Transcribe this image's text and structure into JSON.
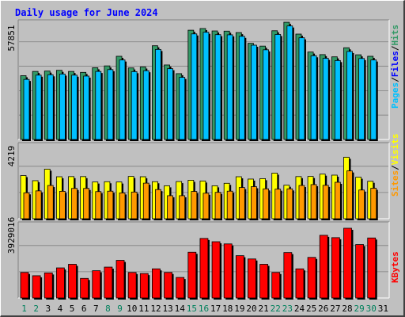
{
  "chart_data": {
    "type": "bar",
    "title": "Daily usage for June 2024",
    "categories": [
      "1",
      "2",
      "3",
      "4",
      "5",
      "6",
      "7",
      "8",
      "9",
      "10",
      "11",
      "12",
      "13",
      "14",
      "15",
      "16",
      "17",
      "18",
      "19",
      "20",
      "21",
      "22",
      "23",
      "24",
      "25",
      "26",
      "27",
      "28",
      "29",
      "30",
      "31"
    ],
    "weekend_days": [
      "1",
      "2",
      "8",
      "9",
      "15",
      "16",
      "22",
      "23",
      "29",
      "30"
    ],
    "colors": {
      "hits": "#339966",
      "files": "#00c0ff",
      "pages": "#00c0ff",
      "visits": "#ffff00",
      "sites": "#ff9900",
      "kbytes": "#ff0000",
      "plot_bg": "#c0c0c0",
      "grid": "#808080",
      "title": "#0000ff",
      "weekday_tick": "#000000",
      "weekend_tick": "#00805c"
    },
    "panels": [
      {
        "name": "hits-files-pages",
        "ytick": "57851",
        "ylim": [
          0,
          63000
        ],
        "legend": [
          {
            "text": "Pages",
            "color": "#00c0ff"
          },
          {
            "text": "/",
            "color": "#000000"
          },
          {
            "text": "Files",
            "color": "#0000ff"
          },
          {
            "text": "/",
            "color": "#000000"
          },
          {
            "text": "Hits",
            "color": "#339966"
          }
        ],
        "series": [
          {
            "name": "Hits",
            "values": [
              34500,
              36800,
              37000,
              37400,
              36800,
              36300,
              38800,
              39800,
              45000,
              38700,
              39200,
              50700,
              40300,
              35600,
              59100,
              60000,
              58700,
              58600,
              57800,
              52000,
              50500,
              58800,
              63400,
              57000,
              47300,
              45900,
              44700,
              49600,
              45800,
              45000,
              null
            ]
          },
          {
            "name": "Files",
            "values": [
              32500,
              34800,
              35000,
              35400,
              34800,
              34300,
              36800,
              37800,
              43000,
              36700,
              37200,
              48700,
              38300,
              33600,
              57100,
              58000,
              56700,
              56600,
              55800,
              51000,
              48500,
              56800,
              61400,
              55000,
              45300,
              43900,
              42700,
              47600,
              43800,
              43000,
              null
            ]
          },
          {
            "name": "Pages",
            "values": [
              0,
              0,
              0,
              0,
              0,
              0,
              0,
              0,
              0,
              0,
              0,
              0,
              0,
              0,
              0,
              0,
              0,
              0,
              0,
              0,
              0,
              0,
              0,
              0,
              0,
              0,
              0,
              0,
              0,
              0,
              null
            ]
          }
        ]
      },
      {
        "name": "visits-sites",
        "ytick": "4219",
        "ylim": [
          0,
          5000
        ],
        "legend": [
          {
            "text": "Sites",
            "color": "#ff9900"
          },
          {
            "text": "/",
            "color": "#000000"
          },
          {
            "text": "Visits",
            "color": "#ffff00"
          }
        ],
        "series": [
          {
            "name": "Visits",
            "values": [
              2960,
              2610,
              3400,
              2880,
              2890,
              2890,
              2520,
              2540,
              2520,
              2900,
              2880,
              2540,
              2260,
              2550,
              2640,
              2590,
              2260,
              2430,
              2880,
              2720,
              2750,
              3130,
              2300,
              2890,
              2900,
              3060,
              2990,
              4220,
              2850,
              2570,
              null
            ]
          },
          {
            "name": "Sites",
            "values": [
              1780,
              1910,
              2280,
              1880,
              2080,
              2080,
              1860,
              1890,
              1770,
              1830,
              2440,
              2000,
              1580,
              1580,
              1870,
              1750,
              1810,
              1890,
              2140,
              2200,
              2050,
              2030,
              2050,
              2280,
              2340,
              2290,
              2500,
              3280,
              1970,
              2090,
              null
            ]
          }
        ]
      },
      {
        "name": "kbytes",
        "ytick": "3929016",
        "ylim": [
          0,
          4450000
        ],
        "legend": [
          {
            "text": "KBytes",
            "color": "#ff0000"
          }
        ],
        "series": [
          {
            "name": "KBytes",
            "values": [
              1630000,
              1420000,
              1600000,
              1920000,
              2150000,
              1250000,
              1740000,
              1970000,
              2400000,
              1630000,
              1560000,
              1860000,
              1630000,
              1310000,
              2920000,
              3800000,
              3590000,
              3450000,
              2700000,
              2490000,
              2150000,
              1630000,
              2900000,
              1860000,
              2590000,
              4000000,
              3850000,
              4450000,
              3410000,
              3830000,
              null
            ]
          }
        ]
      }
    ]
  }
}
